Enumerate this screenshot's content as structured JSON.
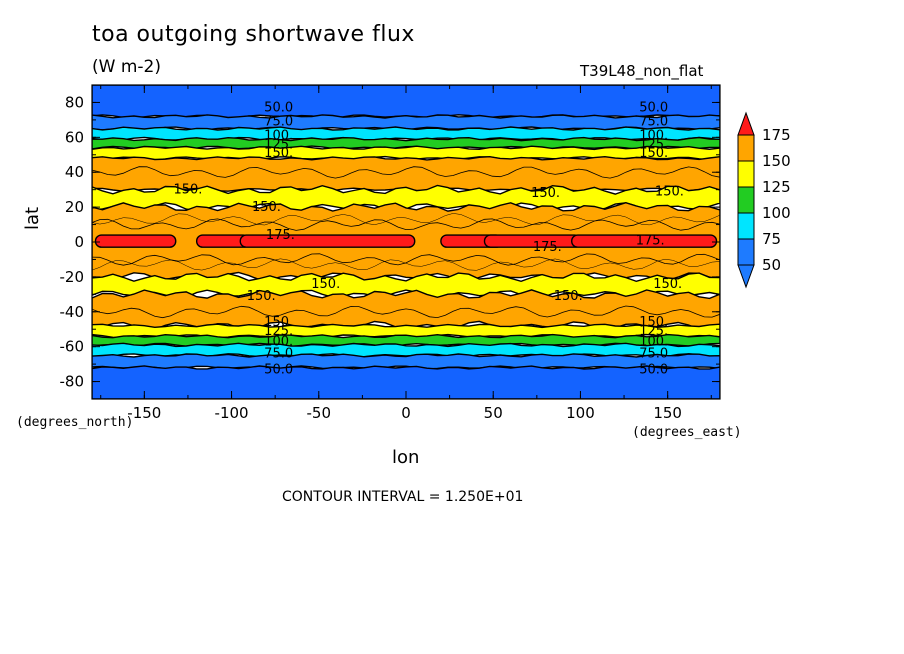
{
  "chart_data": {
    "type": "heatmap",
    "title": "toa outgoing shortwave flux",
    "units": "(W m-2)",
    "run_label": "T39L48_non_flat",
    "xlabel": "lon",
    "ylabel": "lat",
    "x_units": "(degrees_east)",
    "y_units": "(degrees_north)",
    "footer": "CONTOUR INTERVAL = 1.250E+01",
    "xlim": [
      -180,
      180
    ],
    "ylim": [
      -90,
      90
    ],
    "x_ticks": [
      "-150",
      "-100",
      "-50",
      "0",
      "50",
      "100",
      "150"
    ],
    "x_tick_values": [
      -150,
      -100,
      -50,
      0,
      50,
      100,
      150
    ],
    "y_ticks": [
      "80",
      "60",
      "40",
      "20",
      "0",
      "-20",
      "-40",
      "-60",
      "-80"
    ],
    "y_tick_values": [
      80,
      60,
      40,
      20,
      0,
      -20,
      -40,
      -60,
      -80
    ],
    "contour_interval": 12.5,
    "colorbar": {
      "levels": [
        "50",
        "75",
        "100",
        "125",
        "150",
        "175"
      ],
      "colors": [
        "#1e7bff",
        "#00e5ff",
        "#22cc22",
        "#ffff00",
        "#ffa500",
        "#ff1a1a"
      ]
    },
    "bands": [
      {
        "lat_min": 72,
        "lat_max": 90,
        "value": "<50",
        "color": "#1463ff"
      },
      {
        "lat_min": 65,
        "lat_max": 72,
        "value": "50-75",
        "color": "#1e7bff"
      },
      {
        "lat_min": 59,
        "lat_max": 65,
        "value": "75-100",
        "color": "#00e5ff"
      },
      {
        "lat_min": 54,
        "lat_max": 59,
        "value": "100-125",
        "color": "#22cc22"
      },
      {
        "lat_min": 48,
        "lat_max": 54,
        "value": "125-150",
        "color": "#ffff00"
      },
      {
        "lat_min": 30,
        "lat_max": 48,
        "value": "150-175",
        "color": "#ffa500"
      },
      {
        "lat_min": 20,
        "lat_max": 30,
        "value": "125-150",
        "color": "#ffff00"
      },
      {
        "lat_min": -20,
        "lat_max": 20,
        "value": "150-175",
        "color": "#ffa500"
      },
      {
        "lat_min": -30,
        "lat_max": -20,
        "value": "125-150",
        "color": "#ffff00"
      },
      {
        "lat_min": -48,
        "lat_max": -30,
        "value": "150-175",
        "color": "#ffa500"
      },
      {
        "lat_min": -54,
        "lat_max": -48,
        "value": "125-150",
        "color": "#ffff00"
      },
      {
        "lat_min": -59,
        "lat_max": -54,
        "value": "100-125",
        "color": "#22cc22"
      },
      {
        "lat_min": -65,
        "lat_max": -59,
        "value": "75-100",
        "color": "#00e5ff"
      },
      {
        "lat_min": -72,
        "lat_max": -65,
        "value": "50-75",
        "color": "#1e7bff"
      },
      {
        "lat_min": -90,
        "lat_max": -72,
        "value": "<50",
        "color": "#1463ff"
      }
    ],
    "equatorial_max": {
      "value": ">175",
      "color": "#ff1a1a",
      "lat_min": -3,
      "lat_max": 4,
      "segments": [
        [
          -178,
          -132
        ],
        [
          -120,
          -90
        ],
        [
          -95,
          5
        ],
        [
          20,
          55
        ],
        [
          45,
          100
        ],
        [
          95,
          178
        ]
      ]
    },
    "contour_labels": [
      {
        "text": "50.0",
        "lon": -73,
        "lat": 77
      },
      {
        "text": "75.0",
        "lon": -73,
        "lat": 69
      },
      {
        "text": "100.",
        "lon": -73,
        "lat": 61
      },
      {
        "text": "125.",
        "lon": -73,
        "lat": 56
      },
      {
        "text": "150.",
        "lon": -73,
        "lat": 51
      },
      {
        "text": "50.0",
        "lon": 142,
        "lat": 77
      },
      {
        "text": "75.0",
        "lon": 142,
        "lat": 69
      },
      {
        "text": "100.",
        "lon": 142,
        "lat": 61
      },
      {
        "text": "125.",
        "lon": 142,
        "lat": 56
      },
      {
        "text": "150.",
        "lon": 142,
        "lat": 51
      },
      {
        "text": "150.",
        "lon": -125,
        "lat": 30
      },
      {
        "text": "150.",
        "lon": -80,
        "lat": 20
      },
      {
        "text": "150.",
        "lon": 80,
        "lat": 28
      },
      {
        "text": "150.",
        "lon": 151,
        "lat": 29
      },
      {
        "text": "175.",
        "lon": -72,
        "lat": 4
      },
      {
        "text": "175.",
        "lon": 81,
        "lat": -3
      },
      {
        "text": "175.",
        "lon": 140,
        "lat": 1
      },
      {
        "text": "150.",
        "lon": -46,
        "lat": -24
      },
      {
        "text": "150.",
        "lon": -83,
        "lat": -31
      },
      {
        "text": "150.",
        "lon": 93,
        "lat": -31
      },
      {
        "text": "150.",
        "lon": 150,
        "lat": -24
      },
      {
        "text": "150.",
        "lon": -73,
        "lat": -46
      },
      {
        "text": "125.",
        "lon": -73,
        "lat": -51
      },
      {
        "text": "100.",
        "lon": -73,
        "lat": -57
      },
      {
        "text": "75.0",
        "lon": -73,
        "lat": -64
      },
      {
        "text": "50.0",
        "lon": -73,
        "lat": -73
      },
      {
        "text": "150.",
        "lon": 142,
        "lat": -46
      },
      {
        "text": "125.",
        "lon": 142,
        "lat": -51
      },
      {
        "text": "100.",
        "lon": 142,
        "lat": -57
      },
      {
        "text": "75.0",
        "lon": 142,
        "lat": -64
      },
      {
        "text": "50.0",
        "lon": 142,
        "lat": -73
      }
    ]
  }
}
